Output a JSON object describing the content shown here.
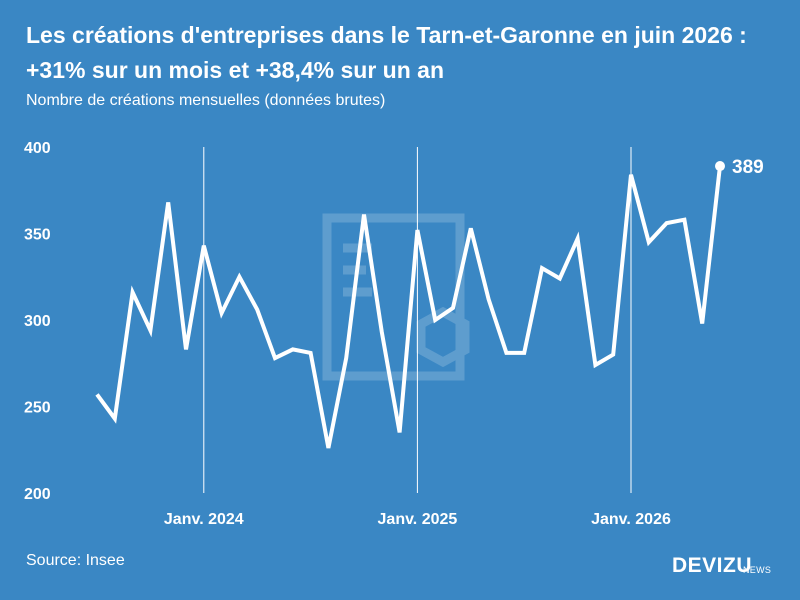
{
  "header": {
    "title": "Les créations d'entreprises dans le Tarn-et-Garonne en juin 2026 : +31% sur un mois et +38,4% sur un an",
    "subtitle": "Nombre de créations mensuelles (données brutes)"
  },
  "footer": {
    "source": "Source: Insee",
    "brand": "DEVIZU",
    "brand_sub": "NEWS"
  },
  "colors": {
    "background": "#3a87c4",
    "line": "#ffffff"
  },
  "chart_data": {
    "type": "line",
    "title": "Les créations d'entreprises dans le Tarn-et-Garonne en juin 2026 : +31% sur un mois et +38,4% sur un an",
    "subtitle": "Nombre de créations mensuelles (données brutes)",
    "xlabel": "",
    "ylabel": "",
    "ylim": [
      200,
      400
    ],
    "yticks": [
      200,
      250,
      300,
      350,
      400
    ],
    "xticks": [
      {
        "label": "Janv. 2024",
        "index": 6
      },
      {
        "label": "Janv. 2025",
        "index": 18
      },
      {
        "label": "Janv. 2026",
        "index": 30
      }
    ],
    "grid": "vertical lines at January",
    "x": [
      "2023-07",
      "2023-08",
      "2023-09",
      "2023-10",
      "2023-11",
      "2023-12",
      "2024-01",
      "2024-02",
      "2024-03",
      "2024-04",
      "2024-05",
      "2024-06",
      "2024-07",
      "2024-08",
      "2024-09",
      "2024-10",
      "2024-11",
      "2024-12",
      "2025-01",
      "2025-02",
      "2025-03",
      "2025-04",
      "2025-05",
      "2025-06",
      "2025-07",
      "2025-08",
      "2025-09",
      "2025-10",
      "2025-11",
      "2025-12",
      "2026-01",
      "2026-02",
      "2026-03",
      "2026-04",
      "2026-05",
      "2026-06"
    ],
    "series": [
      {
        "name": "",
        "values": [
          257,
          243,
          316,
          294,
          368,
          283,
          343,
          304,
          325,
          306,
          278,
          283,
          281,
          226,
          278,
          361,
          293,
          235,
          352,
          300,
          307,
          353,
          312,
          281,
          281,
          330,
          324,
          347,
          274,
          280,
          384,
          345,
          356,
          358,
          298,
          389
        ]
      }
    ],
    "annotations": [
      {
        "label": "389",
        "index": 35
      }
    ]
  }
}
